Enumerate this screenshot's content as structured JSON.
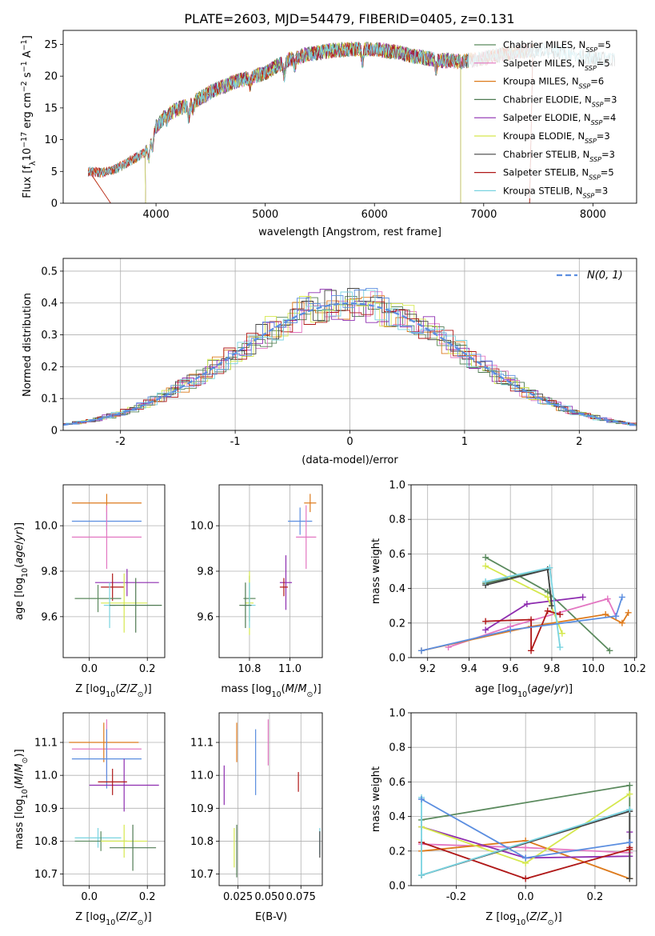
{
  "title": "PLATE=2603, MJD=54479, FIBERID=0405, z=0.131",
  "colors": {
    "Chabrier MILES": "#5b8a5e",
    "Salpeter MILES": "#e377c2",
    "Kroupa MILES": "#dd7a1c",
    "Chabrier ELODIE": "#4f7a52",
    "Salpeter ELODIE": "#8e2db0",
    "Kroupa ELODIE": "#d5e84e",
    "Chabrier STELIB": "#444444",
    "Salpeter STELIB": "#b01818",
    "Kroupa STELIB": "#79d3e0",
    "blue_model": "#5b8ee0",
    "normal": "#5b8ee0"
  },
  "chart_data": [
    {
      "id": "spectrum",
      "type": "line",
      "xlabel": "wavelength [Angstrom, rest frame]",
      "ylabel": "Flux [f_λ 10^-17 erg cm^-2 s^-1 A^-1]",
      "xlim": [
        3150,
        8400
      ],
      "ylim": [
        0,
        27.2
      ],
      "xticks": [
        4000,
        5000,
        6000,
        7000,
        8000
      ],
      "yticks": [
        0,
        5,
        10,
        15,
        20,
        25
      ],
      "grid": false,
      "legend": "upper right",
      "legend_entries": [
        {
          "name": "Chabrier MILES",
          "nssp": "5"
        },
        {
          "name": "Salpeter MILES",
          "nssp": "5"
        },
        {
          "name": "Kroupa MILES",
          "nssp": "6"
        },
        {
          "name": "Chabrier ELODIE",
          "nssp": "3"
        },
        {
          "name": "Salpeter ELODIE",
          "nssp": "4"
        },
        {
          "name": "Kroupa ELODIE",
          "nssp": "3"
        },
        {
          "name": "Chabrier STELIB",
          "nssp": "3"
        },
        {
          "name": "Salpeter STELIB",
          "nssp": "5"
        },
        {
          "name": "Kroupa STELIB",
          "nssp": "3"
        }
      ],
      "continuum": {
        "x": [
          3380,
          3500,
          3600,
          3700,
          3800,
          3900,
          4000,
          4100,
          4200,
          4300,
          4500,
          4700,
          4900,
          5000,
          5200,
          5400,
          5600,
          5800,
          6000,
          6200,
          6400,
          6600,
          6800,
          7000,
          7200,
          7400
        ],
        "y": [
          5.0,
          4.8,
          5.2,
          6.0,
          7.0,
          8.0,
          12.0,
          14.0,
          14.8,
          15.5,
          17.5,
          19.0,
          20.0,
          20.5,
          22.5,
          23.5,
          24.0,
          24.3,
          24.2,
          23.8,
          23.0,
          22.5,
          22.3,
          22.8,
          23.5,
          24.0
        ]
      },
      "extension": {
        "x": [
          7000,
          7200,
          7400,
          7600,
          7800,
          8000,
          8200
        ],
        "y": [
          22.8,
          23.5,
          24.0,
          24.0,
          23.5,
          22.8,
          22.6
        ]
      }
    },
    {
      "id": "residuals",
      "type": "histogram",
      "xlabel": "(data-model)/error",
      "ylabel": "Normed distribution",
      "xlim": [
        -2.5,
        2.5
      ],
      "ylim": [
        0,
        0.54
      ],
      "xticks": [
        -2,
        -1,
        0,
        1,
        2
      ],
      "yticks": [
        0.0,
        0.1,
        0.2,
        0.3,
        0.4,
        0.5
      ],
      "grid": true,
      "legend": "upper right",
      "legend_label": "N(0, 1)"
    },
    {
      "id": "age-vs-Z",
      "type": "errorbar",
      "xlabel": "Z [log10(Z/Z⊙)]",
      "ylabel": "age [log10(age/yr)]",
      "xlim": [
        -0.09,
        0.26
      ],
      "ylim": [
        9.42,
        10.18
      ],
      "xticks": [
        0.0,
        0.2
      ],
      "yticks": [
        9.6,
        9.8,
        10.0
      ],
      "grid": true,
      "points": [
        {
          "model": "Kroupa MILES",
          "x": 0.06,
          "xerr": 0.12,
          "y": 10.1,
          "yerr": 0.04
        },
        {
          "model": "blue_model",
          "x": 0.06,
          "xerr": 0.12,
          "y": 10.02,
          "yerr": 0.04
        },
        {
          "model": "Salpeter MILES",
          "x": 0.06,
          "xerr": 0.12,
          "y": 9.95,
          "yerr": 0.14
        },
        {
          "model": "Salpeter ELODIE",
          "x": 0.13,
          "xerr": 0.11,
          "y": 9.75,
          "yerr": 0.06
        },
        {
          "model": "Salpeter STELIB",
          "x": 0.08,
          "xerr": 0.04,
          "y": 9.73,
          "yerr": 0.06
        },
        {
          "model": "Chabrier MILES",
          "x": 0.03,
          "xerr": 0.08,
          "y": 9.68,
          "yerr": 0.06
        },
        {
          "model": "Kroupa ELODIE",
          "x": 0.12,
          "xerr": 0.08,
          "y": 9.66,
          "yerr": 0.13
        },
        {
          "model": "Kroupa STELIB",
          "x": 0.07,
          "xerr": 0.02,
          "y": 9.65,
          "yerr": 0.1
        },
        {
          "model": "Chabrier ELODIE",
          "x": 0.16,
          "xerr": 0.09,
          "y": 9.65,
          "yerr": 0.12
        }
      ]
    },
    {
      "id": "age-vs-mass",
      "type": "errorbar",
      "xlabel": "mass [log10(M/M⊙)]",
      "ylabel": "",
      "xlim": [
        10.65,
        11.16
      ],
      "ylim": [
        9.42,
        10.18
      ],
      "xticks": [
        10.8,
        11.0
      ],
      "yticks": [
        9.6,
        9.8,
        10.0
      ],
      "grid": true,
      "points": [
        {
          "model": "Kroupa MILES",
          "x": 11.1,
          "xerr": 0.03,
          "y": 10.1,
          "yerr": 0.04
        },
        {
          "model": "blue_model",
          "x": 11.05,
          "xerr": 0.06,
          "y": 10.02,
          "yerr": 0.06
        },
        {
          "model": "Salpeter MILES",
          "x": 11.08,
          "xerr": 0.05,
          "y": 9.95,
          "yerr": 0.14
        },
        {
          "model": "Salpeter ELODIE",
          "x": 10.98,
          "xerr": 0.03,
          "y": 9.75,
          "yerr": 0.12
        },
        {
          "model": "Salpeter STELIB",
          "x": 10.97,
          "xerr": 0.02,
          "y": 9.73,
          "yerr": 0.04
        },
        {
          "model": "Chabrier MILES",
          "x": 10.8,
          "xerr": 0.03,
          "y": 9.68,
          "yerr": 0.1
        },
        {
          "model": "Kroupa ELODIE",
          "x": 10.8,
          "xerr": 0.02,
          "y": 9.66,
          "yerr": 0.14
        },
        {
          "model": "Kroupa STELIB",
          "x": 10.8,
          "xerr": 0.03,
          "y": 9.65,
          "yerr": 0.1
        },
        {
          "model": "Chabrier ELODIE",
          "x": 10.78,
          "xerr": 0.03,
          "y": 9.65,
          "yerr": 0.1
        }
      ]
    },
    {
      "id": "massweight-vs-age",
      "type": "line",
      "xlabel": "age [log10(age/yr)]",
      "ylabel": "mass weight",
      "xlim": [
        9.12,
        10.21
      ],
      "ylim": [
        0,
        1.0
      ],
      "xticks": [
        9.2,
        9.4,
        9.6,
        9.8,
        10.0,
        10.2
      ],
      "yticks": [
        0.0,
        0.2,
        0.4,
        0.6,
        0.8,
        1.0
      ],
      "grid": true,
      "series": [
        {
          "model": "Chabrier MILES",
          "x": [
            9.48,
            9.78,
            10.08
          ],
          "y": [
            0.58,
            0.38,
            0.04
          ]
        },
        {
          "model": "Salpeter MILES",
          "x": [
            9.3,
            9.6,
            10.07,
            10.11
          ],
          "y": [
            0.06,
            0.18,
            0.34,
            0.24
          ]
        },
        {
          "model": "Kroupa MILES",
          "x": [
            9.17,
            9.7,
            10.06,
            10.14,
            10.17
          ],
          "y": [
            0.04,
            0.18,
            0.25,
            0.2,
            0.26
          ]
        },
        {
          "model": "Chabrier ELODIE",
          "x": [
            9.48,
            9.78,
            9.8
          ],
          "y": [
            0.43,
            0.51,
            0.3
          ]
        },
        {
          "model": "Salpeter ELODIE",
          "x": [
            9.48,
            9.68,
            9.95
          ],
          "y": [
            0.16,
            0.31,
            0.35
          ]
        },
        {
          "model": "Kroupa ELODIE",
          "x": [
            9.48,
            9.78,
            9.85
          ],
          "y": [
            0.53,
            0.35,
            0.14
          ]
        },
        {
          "model": "Chabrier STELIB",
          "x": [
            9.48,
            9.78,
            9.8
          ],
          "y": [
            0.42,
            0.51,
            0.3
          ]
        },
        {
          "model": "Salpeter STELIB",
          "x": [
            9.48,
            9.7,
            9.7,
            9.78,
            9.84
          ],
          "y": [
            0.21,
            0.22,
            0.04,
            0.27,
            0.25
          ]
        },
        {
          "model": "Kroupa STELIB",
          "x": [
            9.48,
            9.79,
            9.84
          ],
          "y": [
            0.44,
            0.52,
            0.06
          ]
        },
        {
          "model": "blue_model",
          "x": [
            9.17,
            9.6,
            10.11,
            10.14
          ],
          "y": [
            0.04,
            0.16,
            0.24,
            0.35
          ]
        }
      ]
    },
    {
      "id": "mass-vs-Z",
      "type": "errorbar",
      "xlabel": "Z [log10(Z/Z⊙)]",
      "ylabel": "mass [log10(M/M⊙)]",
      "xlim": [
        -0.09,
        0.26
      ],
      "ylim": [
        10.665,
        11.19
      ],
      "xticks": [
        0.0,
        0.2
      ],
      "yticks": [
        10.7,
        10.8,
        10.9,
        11.0,
        11.1
      ],
      "grid": true,
      "points": [
        {
          "model": "Salpeter MILES",
          "x": 0.06,
          "xerr": 0.12,
          "y": 11.08,
          "yerr": 0.09
        },
        {
          "model": "Kroupa MILES",
          "x": 0.05,
          "xerr": 0.12,
          "y": 11.1,
          "yerr": 0.06
        },
        {
          "model": "blue_model",
          "x": 0.06,
          "xerr": 0.12,
          "y": 11.05,
          "yerr": 0.09
        },
        {
          "model": "Salpeter ELODIE",
          "x": 0.12,
          "xerr": 0.12,
          "y": 10.97,
          "yerr": 0.08
        },
        {
          "model": "Salpeter STELIB",
          "x": 0.08,
          "xerr": 0.05,
          "y": 10.98,
          "yerr": 0.04
        },
        {
          "model": "Kroupa STELIB",
          "x": 0.03,
          "xerr": 0.08,
          "y": 10.81,
          "yerr": 0.03
        },
        {
          "model": "Chabrier MILES",
          "x": 0.04,
          "xerr": 0.09,
          "y": 10.8,
          "yerr": 0.03
        },
        {
          "model": "Kroupa ELODIE",
          "x": 0.12,
          "xerr": 0.08,
          "y": 10.8,
          "yerr": 0.05
        },
        {
          "model": "Chabrier ELODIE",
          "x": 0.15,
          "xerr": 0.08,
          "y": 10.78,
          "yerr": 0.07
        }
      ]
    },
    {
      "id": "mass-vs-EBV",
      "type": "errorbar",
      "xlabel": "E(B-V)",
      "ylabel": "",
      "xlim": [
        0.01,
        0.092
      ],
      "ylim": [
        10.665,
        11.19
      ],
      "xticks": [
        0.025,
        0.05,
        0.075
      ],
      "xticklabels": [
        "0.025",
        "0.050",
        "0.075"
      ],
      "yticks": [
        10.7,
        10.8,
        10.9,
        11.0,
        11.1
      ],
      "grid": true,
      "points": [
        {
          "model": "Kroupa MILES",
          "x": 0.024,
          "y": 11.1,
          "yerr": 0.06
        },
        {
          "model": "Salpeter MILES",
          "x": 0.049,
          "y": 11.1,
          "yerr": 0.07
        },
        {
          "model": "blue_model",
          "x": 0.039,
          "y": 11.04,
          "yerr": 0.1
        },
        {
          "model": "Salpeter ELODIE",
          "x": 0.014,
          "y": 10.97,
          "yerr": 0.06
        },
        {
          "model": "Salpeter STELIB",
          "x": 0.073,
          "y": 10.98,
          "yerr": 0.03
        },
        {
          "model": "Kroupa ELODIE",
          "x": 0.022,
          "y": 10.78,
          "yerr": 0.06
        },
        {
          "model": "Chabrier ELODIE",
          "x": 0.024,
          "y": 10.77,
          "yerr": 0.08
        },
        {
          "model": "Kroupa STELIB",
          "x": 0.09,
          "y": 10.8,
          "yerr": 0.04
        },
        {
          "model": "Chabrier STELIB",
          "x": 0.09,
          "y": 10.79,
          "yerr": 0.04
        }
      ]
    },
    {
      "id": "massweight-vs-Z",
      "type": "line",
      "xlabel": "Z [log10(Z/Z⊙)]",
      "ylabel": "mass weight",
      "xlim": [
        -0.33,
        0.32
      ],
      "ylim": [
        0,
        1.0
      ],
      "xticks": [
        -0.2,
        0.0,
        0.2
      ],
      "yticks": [
        0.0,
        0.2,
        0.4,
        0.6,
        0.8,
        1.0
      ],
      "grid": true,
      "series": [
        {
          "model": "Chabrier MILES",
          "x": [
            -0.3,
            0.3,
            0.3
          ],
          "y": [
            0.38,
            0.58,
            0.04
          ]
        },
        {
          "model": "Salpeter MILES",
          "x": [
            -0.3,
            0.0,
            0.3
          ],
          "y": [
            0.24,
            0.22,
            0.19
          ]
        },
        {
          "model": "Kroupa MILES",
          "x": [
            -0.3,
            0.0,
            0.3
          ],
          "y": [
            0.2,
            0.26,
            0.04
          ]
        },
        {
          "model": "Salpeter ELODIE",
          "x": [
            -0.3,
            0.0,
            0.3,
            0.3
          ],
          "y": [
            0.34,
            0.16,
            0.17,
            0.31
          ]
        },
        {
          "model": "Kroupa ELODIE",
          "x": [
            -0.3,
            0.0,
            0.3
          ],
          "y": [
            0.34,
            0.13,
            0.53
          ]
        },
        {
          "model": "Chabrier STELIB",
          "x": [
            -0.3,
            0.3,
            0.3
          ],
          "y": [
            0.06,
            0.43,
            0.04
          ]
        },
        {
          "model": "Salpeter STELIB",
          "x": [
            -0.3,
            0.0,
            0.3,
            0.3
          ],
          "y": [
            0.25,
            0.04,
            0.21,
            0.22
          ]
        },
        {
          "model": "Kroupa STELIB",
          "x": [
            -0.3,
            -0.3,
            0.3
          ],
          "y": [
            0.51,
            0.06,
            0.44
          ]
        },
        {
          "model": "blue_model",
          "x": [
            -0.3,
            0.0,
            0.3
          ],
          "y": [
            0.5,
            0.16,
            0.25
          ]
        }
      ]
    }
  ]
}
